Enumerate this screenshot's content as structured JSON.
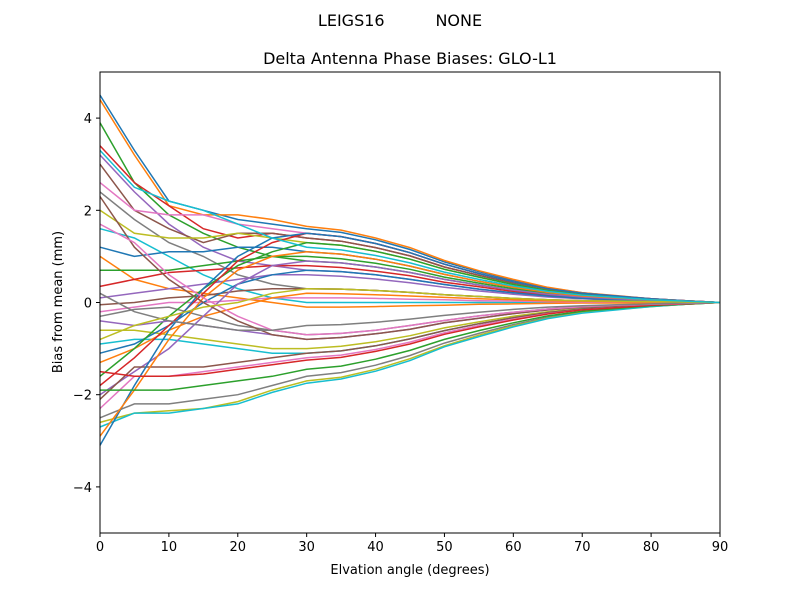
{
  "suptitle": "LEIGS16          NONE",
  "chart_data": {
    "type": "line",
    "title": "Delta Antenna Phase Biases: GLO-L1",
    "xlabel": "Elvation angle (degrees)",
    "ylabel": "Bias from mean (mm)",
    "xlim": [
      0,
      90
    ],
    "ylim": [
      -5,
      5
    ],
    "xticks": [
      "0",
      "10",
      "20",
      "30",
      "40",
      "50",
      "60",
      "70",
      "80",
      "90"
    ],
    "yticks": [
      "−4",
      "−2",
      "0",
      "2",
      "4"
    ],
    "grid": false,
    "colors": [
      "#1f77b4",
      "#ff7f0e",
      "#2ca02c",
      "#d62728",
      "#9467bd",
      "#8c564b",
      "#e377c2",
      "#7f7f7f",
      "#bcbd22",
      "#17becf"
    ],
    "x": [
      0,
      5,
      10,
      15,
      20,
      25,
      30,
      35,
      40,
      45,
      50,
      55,
      60,
      65,
      70,
      75,
      80,
      85,
      90
    ],
    "series": [
      {
        "y": [
          4.5,
          3.3,
          2.2,
          2.0,
          1.8,
          1.7,
          1.6,
          1.52,
          1.36,
          1.15,
          0.88,
          0.67,
          0.48,
          0.32,
          0.21,
          0.14,
          0.08,
          0.04,
          0
        ]
      },
      {
        "y": [
          4.4,
          3.2,
          2.1,
          1.9,
          1.9,
          1.8,
          1.65,
          1.57,
          1.4,
          1.19,
          0.91,
          0.69,
          0.5,
          0.33,
          0.21,
          0.15,
          0.08,
          0.04,
          0
        ]
      },
      {
        "y": [
          3.9,
          2.6,
          1.9,
          1.5,
          1.2,
          1.0,
          0.9,
          0.86,
          0.77,
          0.65,
          0.5,
          0.38,
          0.27,
          0.18,
          0.12,
          0.08,
          0.05,
          0.02,
          0
        ]
      },
      {
        "y": [
          3.4,
          2.6,
          2.1,
          1.6,
          1.4,
          1.5,
          1.4,
          1.33,
          1.19,
          1.01,
          0.77,
          0.59,
          0.42,
          0.28,
          0.18,
          0.13,
          0.07,
          0.04,
          0
        ]
      },
      {
        "y": [
          3.2,
          2.4,
          1.7,
          1.2,
          0.9,
          0.8,
          0.7,
          0.67,
          0.6,
          0.5,
          0.39,
          0.29,
          0.21,
          0.14,
          0.09,
          0.06,
          0.04,
          0.02,
          0
        ]
      },
      {
        "y": [
          3.0,
          2.0,
          1.6,
          1.3,
          1.5,
          1.5,
          1.4,
          1.33,
          1.19,
          1.01,
          0.77,
          0.59,
          0.42,
          0.28,
          0.18,
          0.13,
          0.07,
          0.04,
          0
        ]
      },
      {
        "y": [
          2.6,
          2.0,
          1.9,
          1.9,
          1.7,
          1.6,
          1.5,
          1.43,
          1.28,
          1.08,
          0.83,
          0.63,
          0.45,
          0.3,
          0.2,
          0.14,
          0.08,
          0.04,
          0
        ]
      },
      {
        "y": [
          2.4,
          1.8,
          1.3,
          1.0,
          0.6,
          0.4,
          0.3,
          0.29,
          0.26,
          0.22,
          0.17,
          0.13,
          0.09,
          0.06,
          0.04,
          0.03,
          0.02,
          0.01,
          0
        ]
      },
      {
        "y": [
          2.0,
          1.5,
          1.4,
          1.4,
          1.5,
          1.4,
          1.3,
          1.24,
          1.11,
          0.94,
          0.72,
          0.55,
          0.39,
          0.26,
          0.17,
          0.12,
          0.07,
          0.03,
          0
        ]
      },
      {
        "y": [
          1.6,
          1.4,
          1.0,
          0.6,
          0.3,
          0.1,
          0.0,
          0,
          0,
          0,
          0,
          0,
          0,
          0,
          0,
          0,
          0,
          0,
          0
        ]
      },
      {
        "y": [
          1.2,
          1.0,
          1.1,
          1.1,
          1.2,
          1.2,
          1.1,
          1.05,
          0.94,
          0.79,
          0.61,
          0.46,
          0.33,
          0.22,
          0.14,
          0.1,
          0.06,
          0.03,
          0
        ]
      },
      {
        "y": [
          1.0,
          0.5,
          0.3,
          0.2,
          0.1,
          0.0,
          -0.1,
          -0.1,
          -0.09,
          -0.07,
          -0.06,
          -0.04,
          -0.03,
          -0.02,
          -0.01,
          -0.01,
          -0.01,
          0,
          0
        ]
      },
      {
        "y": [
          0.7,
          0.7,
          0.7,
          0.8,
          0.9,
          1.0,
          1.0,
          0.95,
          0.85,
          0.72,
          0.55,
          0.42,
          0.3,
          0.2,
          0.13,
          0.09,
          0.05,
          0.03,
          0
        ]
      },
      {
        "y": [
          0.35,
          0.5,
          0.65,
          0.7,
          0.75,
          0.8,
          0.8,
          0.76,
          0.68,
          0.58,
          0.44,
          0.34,
          0.24,
          0.16,
          0.1,
          0.07,
          0.04,
          0.02,
          0
        ]
      },
      {
        "y": [
          0.1,
          0.2,
          0.3,
          0.4,
          0.5,
          0.6,
          0.6,
          0.57,
          0.51,
          0.43,
          0.33,
          0.25,
          0.18,
          0.12,
          0.08,
          0.05,
          0.03,
          0.02,
          0
        ]
      },
      {
        "y": [
          -0.05,
          0.0,
          0.1,
          0.15,
          0.25,
          0.3,
          0.3,
          0.29,
          0.26,
          0.22,
          0.17,
          0.13,
          0.09,
          0.06,
          0.04,
          0.03,
          0.02,
          0.01,
          0
        ]
      },
      {
        "y": [
          -0.2,
          -0.1,
          0.0,
          0.0,
          0.05,
          0.1,
          0.1,
          0.1,
          0.09,
          0.07,
          0.06,
          0.04,
          0.03,
          0.02,
          0.01,
          0.01,
          0.01,
          0,
          0
        ]
      },
      {
        "y": [
          -0.3,
          -0.15,
          -0.1,
          -0.3,
          -0.5,
          -0.6,
          -0.7,
          -0.67,
          -0.6,
          -0.5,
          -0.39,
          -0.29,
          -0.21,
          -0.14,
          -0.09,
          -0.06,
          -0.04,
          -0.02,
          0
        ]
      },
      {
        "y": [
          -0.6,
          -0.6,
          -0.7,
          -0.8,
          -0.9,
          -1.0,
          -1.0,
          -0.95,
          -0.85,
          -0.72,
          -0.55,
          -0.42,
          -0.3,
          -0.2,
          -0.13,
          -0.09,
          -0.05,
          -0.03,
          0
        ]
      },
      {
        "y": [
          -0.9,
          -0.8,
          -0.8,
          -0.9,
          -1.0,
          -1.1,
          -1.1,
          -1.05,
          -0.94,
          -0.79,
          -0.61,
          -0.46,
          -0.33,
          -0.22,
          -0.14,
          -0.1,
          -0.06,
          -0.03,
          0
        ]
      },
      {
        "y": [
          -1.1,
          -0.9,
          -0.5,
          0.0,
          0.4,
          0.6,
          0.7,
          0.67,
          0.6,
          0.5,
          0.39,
          0.29,
          0.21,
          0.14,
          0.09,
          0.06,
          0.04,
          0.02,
          0
        ]
      },
      {
        "y": [
          -1.3,
          -1.0,
          -0.6,
          -0.3,
          -0.1,
          0.1,
          0.2,
          0.19,
          0.17,
          0.14,
          0.11,
          0.08,
          0.06,
          0.04,
          0.03,
          0.02,
          0.01,
          0.01,
          0
        ]
      },
      {
        "y": [
          -1.6,
          -1.0,
          -0.3,
          0.3,
          0.8,
          1.1,
          1.3,
          1.24,
          1.11,
          0.94,
          0.72,
          0.55,
          0.39,
          0.26,
          0.17,
          0.12,
          0.07,
          0.03,
          0
        ]
      },
      {
        "y": [
          -1.8,
          -1.2,
          -0.5,
          0.2,
          0.9,
          1.3,
          1.5,
          1.43,
          1.28,
          1.08,
          0.83,
          0.63,
          0.45,
          0.3,
          0.2,
          0.14,
          0.08,
          0.04,
          0
        ]
      },
      {
        "y": [
          -2.0,
          -1.5,
          -1.0,
          -0.3,
          0.4,
          0.8,
          0.9,
          0.86,
          0.77,
          0.65,
          0.5,
          0.38,
          0.27,
          0.18,
          0.12,
          0.08,
          0.05,
          0.02,
          0
        ]
      },
      {
        "y": [
          -2.1,
          -1.4,
          -1.4,
          -1.4,
          -1.3,
          -1.2,
          -1.1,
          -1.05,
          -0.94,
          -0.79,
          -0.61,
          -0.46,
          -0.33,
          -0.22,
          -0.14,
          -0.1,
          -0.06,
          -0.03,
          0
        ]
      },
      {
        "y": [
          -2.3,
          -1.6,
          -1.6,
          -1.5,
          -1.4,
          -1.3,
          -1.2,
          -1.14,
          -1.02,
          -0.86,
          -0.66,
          -0.5,
          -0.36,
          -0.24,
          -0.16,
          -0.11,
          -0.06,
          -0.03,
          0
        ]
      },
      {
        "y": [
          -2.5,
          -2.2,
          -2.2,
          -2.1,
          -2.0,
          -1.8,
          -1.6,
          -1.52,
          -1.36,
          -1.15,
          -0.88,
          -0.67,
          -0.48,
          -0.32,
          -0.21,
          -0.14,
          -0.08,
          -0.04,
          0
        ]
      },
      {
        "y": [
          -2.6,
          -2.4,
          -2.35,
          -2.3,
          -2.15,
          -1.9,
          -1.7,
          -1.62,
          -1.45,
          -1.22,
          -0.94,
          -0.71,
          -0.51,
          -0.34,
          -0.22,
          -0.15,
          -0.09,
          -0.04,
          0
        ]
      },
      {
        "y": [
          -2.7,
          -2.4,
          -2.4,
          -2.3,
          -2.2,
          -1.95,
          -1.75,
          -1.66,
          -1.49,
          -1.26,
          -0.96,
          -0.74,
          -0.53,
          -0.35,
          -0.23,
          -0.16,
          -0.09,
          -0.04,
          0
        ]
      },
      {
        "y": [
          -3.1,
          -1.8,
          -0.6,
          0.3,
          1.0,
          1.4,
          1.5,
          1.43,
          1.28,
          1.08,
          0.83,
          0.63,
          0.45,
          0.3,
          0.2,
          0.14,
          0.08,
          0.04,
          0
        ]
      },
      {
        "y": [
          -2.9,
          -1.9,
          -0.8,
          0.1,
          0.7,
          1.0,
          1.1,
          1.05,
          0.94,
          0.79,
          0.61,
          0.46,
          0.33,
          0.22,
          0.14,
          0.1,
          0.06,
          0.03,
          0
        ]
      },
      {
        "y": [
          -1.9,
          -1.9,
          -1.9,
          -1.8,
          -1.7,
          -1.6,
          -1.45,
          -1.38,
          -1.23,
          -1.04,
          -0.8,
          -0.61,
          -0.44,
          -0.29,
          -0.19,
          -0.13,
          -0.07,
          -0.04,
          0
        ]
      },
      {
        "y": [
          -1.5,
          -1.6,
          -1.6,
          -1.55,
          -1.45,
          -1.35,
          -1.25,
          -1.19,
          -1.06,
          -0.9,
          -0.69,
          -0.53,
          -0.38,
          -0.25,
          -0.16,
          -0.11,
          -0.06,
          -0.03,
          0
        ]
      },
      {
        "y": [
          -0.4,
          -0.5,
          -0.4,
          -0.5,
          -0.6,
          -0.7,
          -0.8,
          -0.76,
          -0.68,
          -0.58,
          -0.44,
          -0.34,
          -0.24,
          -0.16,
          -0.1,
          -0.07,
          -0.04,
          -0.02,
          0
        ]
      },
      {
        "y": [
          2.3,
          1.2,
          0.5,
          0.0,
          -0.4,
          -0.7,
          -0.8,
          -0.76,
          -0.68,
          -0.58,
          -0.44,
          -0.34,
          -0.24,
          -0.16,
          -0.1,
          -0.07,
          -0.04,
          -0.02,
          0
        ]
      },
      {
        "y": [
          1.7,
          1.3,
          0.6,
          0.1,
          -0.3,
          -0.6,
          -0.7,
          -0.67,
          -0.6,
          -0.5,
          -0.39,
          -0.29,
          -0.21,
          -0.14,
          -0.09,
          -0.06,
          -0.04,
          -0.02,
          0
        ]
      },
      {
        "y": [
          0.2,
          -0.2,
          -0.4,
          -0.5,
          -0.6,
          -0.6,
          -0.5,
          -0.48,
          -0.43,
          -0.36,
          -0.28,
          -0.21,
          -0.15,
          -0.1,
          -0.07,
          -0.05,
          -0.03,
          -0.01,
          0
        ]
      },
      {
        "y": [
          -0.8,
          -0.5,
          -0.3,
          -0.1,
          0.0,
          0.2,
          0.3,
          0.29,
          0.26,
          0.22,
          0.17,
          0.13,
          0.09,
          0.06,
          0.04,
          0.03,
          0.02,
          0.01,
          0
        ]
      },
      {
        "y": [
          3.3,
          2.5,
          2.2,
          2.0,
          1.7,
          1.4,
          1.2,
          1.14,
          1.02,
          0.86,
          0.66,
          0.5,
          0.36,
          0.24,
          0.16,
          0.11,
          0.06,
          0.03,
          0
        ]
      }
    ]
  }
}
